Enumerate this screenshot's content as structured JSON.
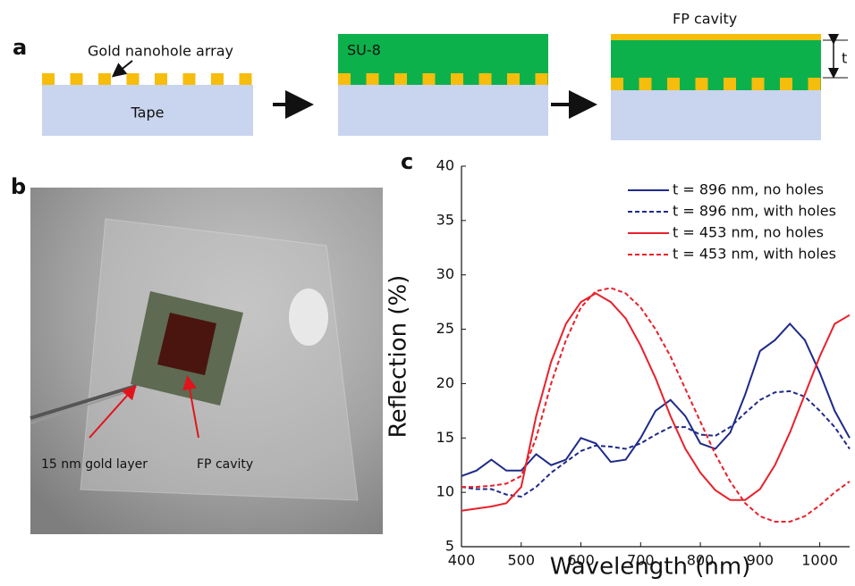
{
  "panel_labels": {
    "a": "a",
    "b": "b",
    "c": "c"
  },
  "diagram": {
    "nanohole_label": "Gold nanohole array",
    "tape_label": "Tape",
    "su8_label": "SU-8",
    "cavity_label": "FP cavity",
    "thickness_label": "t"
  },
  "photo": {
    "gold_layer_label": "15 nm gold layer",
    "cavity_label": "FP cavity"
  },
  "chart_data": {
    "type": "line",
    "x_label": "Wavelength (nm)",
    "y_label": "Reflection (%)",
    "x": [
      400,
      425,
      450,
      475,
      500,
      525,
      550,
      575,
      600,
      625,
      650,
      675,
      700,
      725,
      750,
      775,
      800,
      825,
      850,
      875,
      900,
      925,
      950,
      975,
      1000,
      1025,
      1050
    ],
    "series": [
      {
        "name": "t = 896 nm, no holes",
        "color": "#1f2a88",
        "linestyle": "solid",
        "values": [
          11.5,
          12,
          13,
          12,
          12,
          13.5,
          12.5,
          13,
          15,
          14.5,
          12.8,
          13,
          15,
          17.5,
          18.5,
          17,
          14.5,
          14,
          15.5,
          19,
          23,
          24,
          25.5,
          24,
          21,
          17.5,
          15
        ]
      },
      {
        "name": "t = 896 nm, with holes",
        "color": "#1f2a88",
        "linestyle": "dashed",
        "values": [
          10.5,
          10.3,
          10.3,
          9.8,
          9.6,
          10.5,
          11.8,
          12.8,
          13.8,
          14.3,
          14.2,
          14,
          14.5,
          15.3,
          16,
          16,
          15.3,
          15.2,
          16,
          17.3,
          18.5,
          19.2,
          19.3,
          18.8,
          17.5,
          16,
          14
        ]
      },
      {
        "name": "t = 453 nm, no holes",
        "color": "#e8212b",
        "linestyle": "solid",
        "values": [
          8.3,
          8.5,
          8.7,
          9,
          10.5,
          17,
          22,
          25.5,
          27.5,
          28.3,
          27.5,
          26,
          23.5,
          20.5,
          17,
          14,
          11.8,
          10.2,
          9.3,
          9.3,
          10.3,
          12.5,
          15.5,
          19,
          22.5,
          25.5,
          26.3
        ]
      },
      {
        "name": "t = 453 nm, with holes",
        "color": "#e8212b",
        "linestyle": "dashed",
        "values": [
          10.5,
          10.5,
          10.6,
          10.8,
          11.5,
          15,
          20,
          24,
          27,
          28.5,
          28.8,
          28.3,
          27,
          25,
          22.5,
          19.5,
          16.5,
          13.5,
          11,
          9,
          7.8,
          7.3,
          7.3,
          7.8,
          8.8,
          10,
          11
        ]
      }
    ],
    "xlim": [
      400,
      1050
    ],
    "xticks": [
      400,
      500,
      600,
      700,
      800,
      900,
      1000
    ],
    "ylim": [
      5,
      40
    ],
    "yticks": [
      5,
      10,
      15,
      20,
      25,
      30,
      35,
      40
    ],
    "legend": "upper right"
  }
}
